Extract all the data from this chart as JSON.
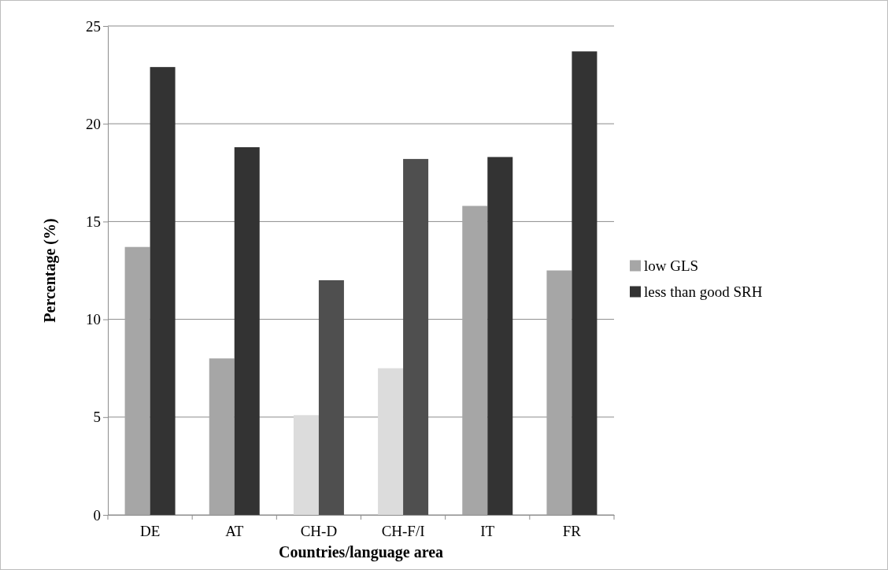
{
  "chart_data": {
    "type": "bar",
    "xlabel": "Countries/language area",
    "ylabel": "Percentage (%)",
    "categories": [
      "DE",
      "AT",
      "CH-D",
      "CH-F/I",
      "IT",
      "FR"
    ],
    "series": [
      {
        "name": "low GLS",
        "color": "#a6a6a6",
        "colors": [
          "#a6a6a6",
          "#a6a6a6",
          "#dcdcdc",
          "#dcdcdc",
          "#a6a6a6",
          "#a6a6a6"
        ],
        "values": [
          13.7,
          8.0,
          5.1,
          7.5,
          15.8,
          12.5
        ]
      },
      {
        "name": "less than good SRH",
        "color": "#333333",
        "colors": [
          "#333333",
          "#333333",
          "#4f4f4f",
          "#4f4f4f",
          "#333333",
          "#333333"
        ],
        "values": [
          22.9,
          18.8,
          12.0,
          18.2,
          18.3,
          23.7
        ]
      }
    ],
    "ylim": [
      0,
      25
    ],
    "yticks": [
      0,
      5,
      10,
      15,
      20,
      25
    ],
    "grid": "y",
    "legend": "right"
  }
}
